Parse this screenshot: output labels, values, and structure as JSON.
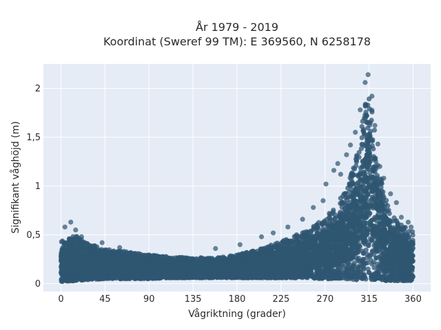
{
  "chart_data": {
    "type": "scatter",
    "title_lines": [
      "År 1979 - 2019",
      "Koordinat (Sweref 99 TM): E 369560, N 6258178"
    ],
    "xlabel": "Vågriktning (grader)",
    "ylabel": "Signifikant våghöjd (m)",
    "xlim": [
      -18,
      378
    ],
    "ylim": [
      -0.08,
      2.25
    ],
    "x_ticks": [
      0,
      45,
      90,
      135,
      180,
      225,
      270,
      315,
      360
    ],
    "x_tick_labels": [
      "0",
      "45",
      "90",
      "135",
      "180",
      "225",
      "270",
      "315",
      "360"
    ],
    "y_ticks": [
      0,
      0.5,
      1,
      1.5,
      2
    ],
    "y_tick_labels": [
      "0",
      "0,5",
      "1",
      "1,5",
      "2"
    ],
    "grid": true,
    "background_color": "#e5ecf6",
    "marker_color": "#2f5671",
    "series": [
      {
        "envelope_x": [
          0,
          15,
          25,
          45,
          70,
          90,
          110,
          135,
          160,
          180,
          200,
          225,
          250,
          270,
          290,
          300,
          305,
          310,
          313,
          315,
          318,
          322,
          330,
          340,
          350,
          360
        ],
        "envelope_upper": [
          0.45,
          0.5,
          0.44,
          0.36,
          0.33,
          0.3,
          0.28,
          0.27,
          0.27,
          0.3,
          0.35,
          0.44,
          0.55,
          0.68,
          0.95,
          1.25,
          1.5,
          1.8,
          2.0,
          2.1,
          1.9,
          1.45,
          0.95,
          0.7,
          0.6,
          0.55
        ],
        "envelope_lower": [
          0.02,
          0.03,
          0.04,
          0.05,
          0.05,
          0.05,
          0.06,
          0.06,
          0.06,
          0.06,
          0.06,
          0.06,
          0.06,
          0.05,
          0.05,
          0.04,
          0.04,
          0.04,
          0.04,
          0.04,
          0.04,
          0.04,
          0.03,
          0.03,
          0.03,
          0.03
        ],
        "outliers": [
          {
            "x": 10,
            "y": 0.63
          },
          {
            "x": 4,
            "y": 0.58
          },
          {
            "x": 15,
            "y": 0.55
          },
          {
            "x": 21,
            "y": 0.48
          },
          {
            "x": 42,
            "y": 0.42
          },
          {
            "x": 60,
            "y": 0.37
          },
          {
            "x": 158,
            "y": 0.36
          },
          {
            "x": 183,
            "y": 0.4
          },
          {
            "x": 205,
            "y": 0.48
          },
          {
            "x": 217,
            "y": 0.52
          },
          {
            "x": 232,
            "y": 0.58
          },
          {
            "x": 247,
            "y": 0.66
          },
          {
            "x": 258,
            "y": 0.78
          },
          {
            "x": 268,
            "y": 0.85
          },
          {
            "x": 271,
            "y": 1.02
          },
          {
            "x": 279,
            "y": 1.16
          },
          {
            "x": 283,
            "y": 1.23
          },
          {
            "x": 286,
            "y": 1.12
          },
          {
            "x": 292,
            "y": 1.32
          },
          {
            "x": 296,
            "y": 1.42
          },
          {
            "x": 301,
            "y": 1.55
          },
          {
            "x": 306,
            "y": 1.78
          },
          {
            "x": 311,
            "y": 2.06
          },
          {
            "x": 314,
            "y": 2.14
          },
          {
            "x": 318,
            "y": 1.92
          },
          {
            "x": 321,
            "y": 1.62
          },
          {
            "x": 324,
            "y": 1.43
          },
          {
            "x": 326,
            "y": 1.2
          },
          {
            "x": 330,
            "y": 1.08
          },
          {
            "x": 337,
            "y": 0.92
          },
          {
            "x": 343,
            "y": 0.83
          },
          {
            "x": 348,
            "y": 0.68
          },
          {
            "x": 355,
            "y": 0.63
          },
          {
            "x": 358,
            "y": 0.58
          }
        ]
      }
    ]
  }
}
